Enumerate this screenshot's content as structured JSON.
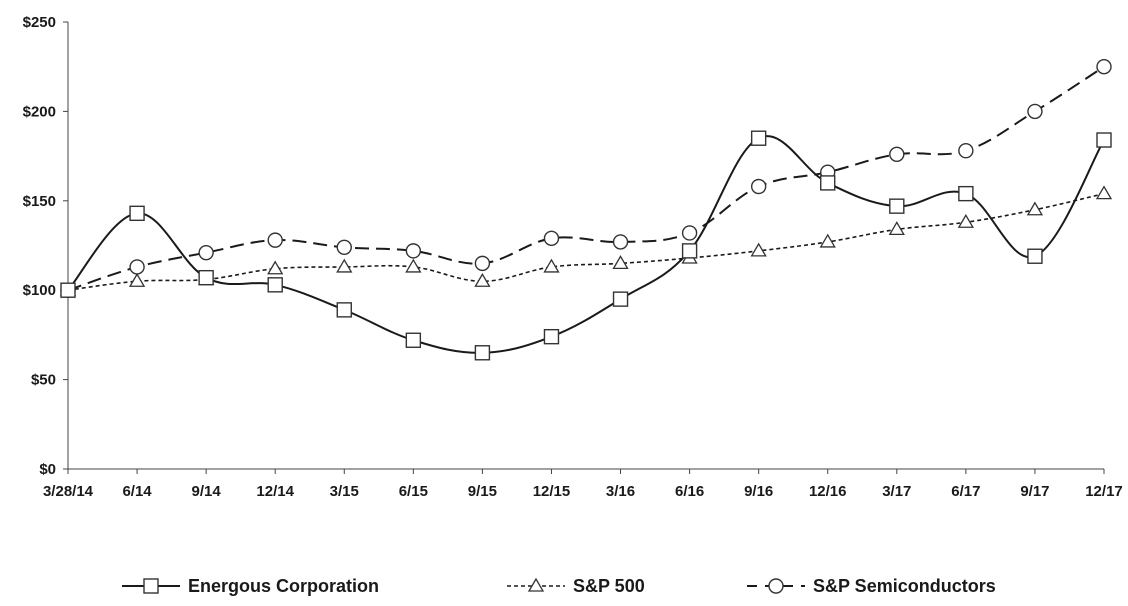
{
  "chart_data": {
    "type": "line",
    "title": "",
    "xlabel": "",
    "ylabel": "",
    "categories": [
      "3/28/14",
      "6/14",
      "9/14",
      "12/14",
      "3/15",
      "6/15",
      "9/15",
      "12/15",
      "3/16",
      "6/16",
      "9/16",
      "12/16",
      "3/17",
      "6/17",
      "9/17",
      "12/17"
    ],
    "y_ticks": [
      "$0",
      "$50",
      "$100",
      "$150",
      "$200",
      "$250"
    ],
    "y_tick_values": [
      0,
      50,
      100,
      150,
      200,
      250
    ],
    "ylim": [
      0,
      250
    ],
    "grid": false,
    "legend_position": "bottom",
    "series": [
      {
        "name": "Energous Corporation",
        "style": "solid",
        "marker": "square",
        "color": "#1a1a1a",
        "values": [
          100,
          143,
          107,
          103,
          89,
          72,
          65,
          74,
          95,
          122,
          185,
          160,
          147,
          154,
          119,
          184
        ]
      },
      {
        "name": "S&P 500",
        "style": "dotted",
        "marker": "triangle",
        "color": "#1a1a1a",
        "values": [
          100,
          105,
          106,
          112,
          113,
          113,
          105,
          113,
          115,
          118,
          122,
          127,
          134,
          138,
          145,
          154
        ]
      },
      {
        "name": "S&P Semiconductors",
        "style": "dashed",
        "marker": "circle",
        "color": "#1a1a1a",
        "values": [
          100,
          113,
          121,
          128,
          124,
          122,
          115,
          129,
          127,
          132,
          158,
          166,
          176,
          178,
          200,
          225
        ]
      }
    ]
  }
}
